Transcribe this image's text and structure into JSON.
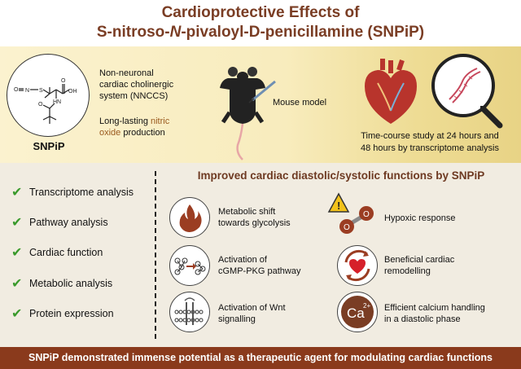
{
  "title": {
    "line1": "Cardioprotective Effects of",
    "line2_pre": "S-nitroso-",
    "line2_italic": "N",
    "line2_post": "-pivaloyl-D-penicillamine (SNPiP)"
  },
  "compound": {
    "name": "SNPiP",
    "atoms": {
      "o1": "O",
      "n1": "N",
      "s1": "S",
      "oh": "OH",
      "o2": "O",
      "nh": "HN",
      "o3": "O"
    },
    "description": {
      "line1": "Non-neuronal",
      "line2": "cardiac cholinergic",
      "line3": "system (NNCCS)",
      "line4_pre": "Long-lasting ",
      "line4_accent": "nitric",
      "line5": "oxide",
      "line5_post": " production"
    }
  },
  "mouse_model": {
    "label": "Mouse model"
  },
  "study": {
    "line1": "Time-course study at 24 hours and",
    "line2": "48 hours by transcriptome analysis"
  },
  "analyses": [
    {
      "label": "Transcriptome analysis"
    },
    {
      "label": "Pathway analysis"
    },
    {
      "label": "Cardiac function"
    },
    {
      "label": "Metabolic analysis"
    },
    {
      "label": "Protein expression"
    }
  ],
  "check_glyph": "✔",
  "functions_title": "Improved cardiac diastolic/systolic functions by SNPiP",
  "functions": [
    {
      "line1": "Metabolic shift",
      "line2": "towards glycolysis",
      "icon": "flame-icon"
    },
    {
      "line1": "Hypoxic response",
      "line2": "",
      "icon": "oxygen-warning-icon"
    },
    {
      "line1": "Activation of",
      "line2": "cGMP-PKG pathway",
      "icon": "pathway-icon"
    },
    {
      "line1": "Beneficial cardiac",
      "line2": "remodelling",
      "icon": "heart-cycle-icon"
    },
    {
      "line1": "Activation of Wnt",
      "line2": "signalling",
      "icon": "membrane-icon"
    },
    {
      "line1": "Efficient calcium handling",
      "line2": "in a diastolic phase",
      "icon": "calcium-icon"
    }
  ],
  "warning_glyph": "!",
  "o_atom": "O",
  "calcium": {
    "symbol": "Ca",
    "charge": "2+"
  },
  "footer": "SNPiP demonstrated immense potential as a therapeutic agent for modulating cardiac functions",
  "colors": {
    "title": "#7a3d24",
    "check": "#3a9a2c",
    "footer_bg": "#8a3a1c",
    "accent": "#9a5a1e"
  }
}
